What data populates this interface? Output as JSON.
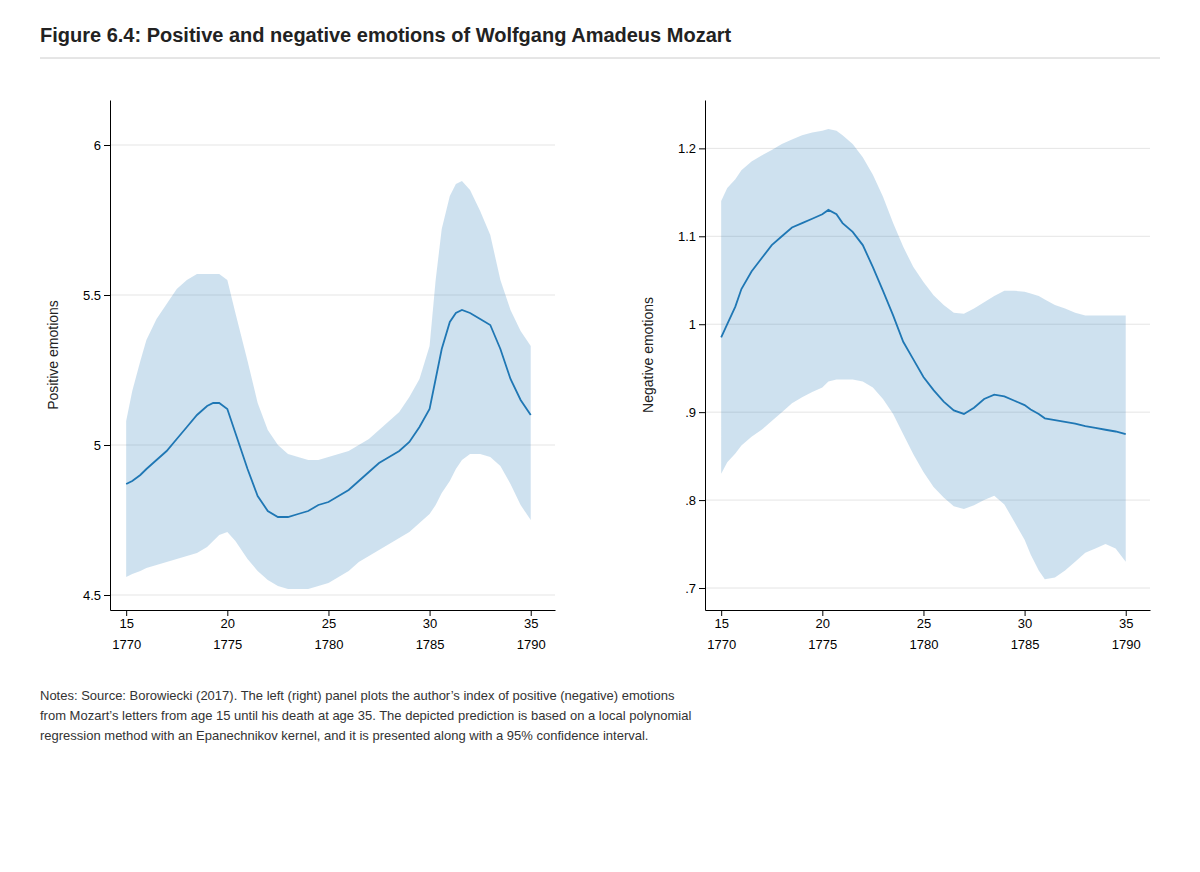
{
  "chart_data": [
    {
      "type": "line",
      "title": "Figure 6.4: Positive and negative emotions of Wolfgang Amadeus Mozart",
      "annotations": [
        "Notes: Source: Borowiecki (2017). The left (right) panel plots the author’s index of positive (negative) emotions\nfrom Mozart’s letters from age 15 until his death at age 35. The depicted prediction is based on a local polynomial\nregression method with an Epanechnikov kernel, and it is presented along with a 95% confidence interval."
      ],
      "ylabel": "Positive emotions",
      "x": [
        15,
        15.3,
        15.7,
        16,
        16.5,
        17,
        17.5,
        18,
        18.5,
        19,
        19.3,
        19.6,
        20,
        20.4,
        21,
        21.5,
        22,
        22.5,
        23,
        23.5,
        24,
        24.5,
        25,
        25.5,
        26,
        26.5,
        27,
        27.5,
        28,
        28.5,
        29,
        29.5,
        30,
        30.3,
        30.6,
        31,
        31.3,
        31.6,
        32,
        32.5,
        33,
        33.5,
        34,
        34.5,
        35
      ],
      "xlim": [
        14.2,
        36.2
      ],
      "xticks": [
        15,
        20,
        25,
        30,
        35
      ],
      "x2lim": [
        1769.2,
        1791.2
      ],
      "x2ticks": [
        1770,
        1775,
        1780,
        1785,
        1790
      ],
      "ylim": [
        4.45,
        6.15
      ],
      "yticks": [
        4.5,
        5,
        5.5,
        6
      ],
      "grid": true,
      "series": [
        {
          "type": "area",
          "lower": [
            4.56,
            4.57,
            4.58,
            4.59,
            4.6,
            4.61,
            4.62,
            4.63,
            4.64,
            4.66,
            4.68,
            4.7,
            4.71,
            4.68,
            4.62,
            4.58,
            4.55,
            4.53,
            4.52,
            4.52,
            4.52,
            4.53,
            4.54,
            4.56,
            4.58,
            4.61,
            4.63,
            4.65,
            4.67,
            4.69,
            4.71,
            4.74,
            4.77,
            4.8,
            4.84,
            4.88,
            4.92,
            4.95,
            4.97,
            4.97,
            4.96,
            4.93,
            4.87,
            4.8,
            4.75
          ],
          "upper": [
            5.08,
            5.18,
            5.28,
            5.35,
            5.42,
            5.47,
            5.52,
            5.55,
            5.57,
            5.57,
            5.57,
            5.57,
            5.55,
            5.44,
            5.28,
            5.14,
            5.05,
            5.0,
            4.97,
            4.96,
            4.95,
            4.95,
            4.96,
            4.97,
            4.98,
            5.0,
            5.02,
            5.05,
            5.08,
            5.11,
            5.16,
            5.22,
            5.33,
            5.55,
            5.72,
            5.83,
            5.87,
            5.88,
            5.85,
            5.78,
            5.7,
            5.55,
            5.45,
            5.38,
            5.33
          ]
        },
        {
          "type": "line",
          "values": [
            4.87,
            4.88,
            4.9,
            4.92,
            4.95,
            4.98,
            5.02,
            5.06,
            5.1,
            5.13,
            5.14,
            5.14,
            5.12,
            5.04,
            4.92,
            4.83,
            4.78,
            4.76,
            4.76,
            4.77,
            4.78,
            4.8,
            4.81,
            4.83,
            4.85,
            4.88,
            4.91,
            4.94,
            4.96,
            4.98,
            5.01,
            5.06,
            5.12,
            5.22,
            5.32,
            5.41,
            5.44,
            5.45,
            5.44,
            5.42,
            5.4,
            5.32,
            5.22,
            5.15,
            5.1
          ]
        }
      ]
    },
    {
      "type": "line",
      "ylabel": "Negative emotions",
      "x": [
        15,
        15.3,
        15.7,
        16,
        16.5,
        17,
        17.5,
        18,
        18.5,
        19,
        19.5,
        20,
        20.3,
        20.7,
        21,
        21.5,
        22,
        22.5,
        23,
        23.5,
        24,
        24.5,
        25,
        25.5,
        26,
        26.5,
        27,
        27.5,
        28,
        28.5,
        29,
        29.5,
        30,
        30.3,
        30.7,
        31,
        31.5,
        32,
        32.5,
        33,
        33.5,
        34,
        34.5,
        35
      ],
      "xlim": [
        14.2,
        36.2
      ],
      "xticks": [
        15,
        20,
        25,
        30,
        35
      ],
      "x2lim": [
        1769.2,
        1791.2
      ],
      "x2ticks": [
        1770,
        1775,
        1780,
        1785,
        1790
      ],
      "ylim": [
        0.675,
        1.255
      ],
      "yticks": [
        {
          "value": 0.7,
          "label": ".7"
        },
        {
          "value": 0.8,
          "label": ".8"
        },
        {
          "value": 0.9,
          "label": ".9"
        },
        1,
        1.1,
        1.2
      ],
      "grid": true,
      "series": [
        {
          "type": "area",
          "lower": [
            0.83,
            0.843,
            0.853,
            0.862,
            0.872,
            0.88,
            0.89,
            0.9,
            0.91,
            0.917,
            0.923,
            0.928,
            0.935,
            0.937,
            0.937,
            0.937,
            0.935,
            0.928,
            0.915,
            0.898,
            0.875,
            0.852,
            0.832,
            0.815,
            0.803,
            0.793,
            0.79,
            0.794,
            0.8,
            0.805,
            0.795,
            0.775,
            0.755,
            0.738,
            0.72,
            0.71,
            0.712,
            0.72,
            0.73,
            0.74,
            0.745,
            0.75,
            0.745,
            0.73
          ],
          "upper": [
            1.14,
            1.155,
            1.165,
            1.175,
            1.185,
            1.192,
            1.198,
            1.205,
            1.21,
            1.215,
            1.218,
            1.22,
            1.222,
            1.22,
            1.215,
            1.205,
            1.19,
            1.17,
            1.145,
            1.115,
            1.088,
            1.065,
            1.048,
            1.033,
            1.022,
            1.013,
            1.012,
            1.018,
            1.025,
            1.032,
            1.038,
            1.038,
            1.037,
            1.035,
            1.032,
            1.028,
            1.022,
            1.018,
            1.013,
            1.01,
            1.01,
            1.01,
            1.01,
            1.01
          ]
        },
        {
          "type": "line",
          "values": [
            0.985,
            1.0,
            1.02,
            1.04,
            1.06,
            1.075,
            1.09,
            1.1,
            1.11,
            1.115,
            1.12,
            1.125,
            1.13,
            1.125,
            1.115,
            1.105,
            1.09,
            1.065,
            1.038,
            1.01,
            0.98,
            0.96,
            0.94,
            0.925,
            0.912,
            0.902,
            0.898,
            0.905,
            0.915,
            0.92,
            0.918,
            0.913,
            0.908,
            0.903,
            0.898,
            0.893,
            0.891,
            0.889,
            0.887,
            0.884,
            0.882,
            0.88,
            0.878,
            0.875
          ]
        }
      ]
    }
  ]
}
